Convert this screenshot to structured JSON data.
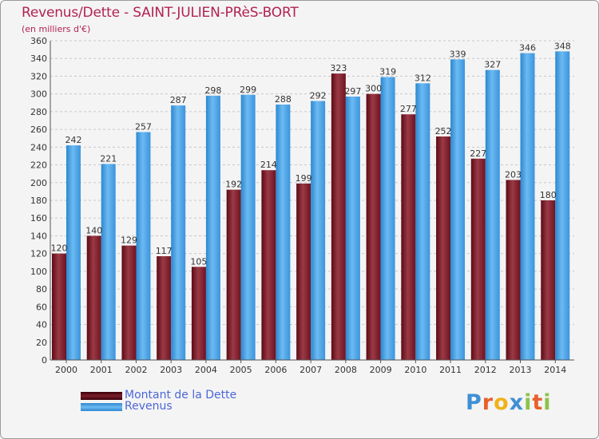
{
  "chart_data": {
    "type": "bar",
    "title": "Revenus/Dette - SAINT-JULIEN-PRèS-BORT",
    "subtitle": "(en milliers d'€)",
    "categories": [
      "2000",
      "2001",
      "2002",
      "2003",
      "2004",
      "2005",
      "2006",
      "2007",
      "2008",
      "2009",
      "2010",
      "2011",
      "2012",
      "2013",
      "2014"
    ],
    "series": [
      {
        "name": "Montant de la Dette",
        "color": "#7a1f2b",
        "values": [
          120,
          140,
          129,
          117,
          105,
          192,
          214,
          199,
          323,
          300,
          277,
          252,
          227,
          203,
          180
        ]
      },
      {
        "name": "Revenus",
        "color": "#4ea3e6",
        "values": [
          242,
          221,
          257,
          287,
          298,
          299,
          288,
          292,
          297,
          319,
          312,
          339,
          327,
          346,
          348
        ]
      }
    ],
    "ylim": [
      0,
      360
    ],
    "ytick_step": 20,
    "grid": true,
    "legend_position": "bottom-left"
  },
  "legend": {
    "debt_label": "Montant de la Dette",
    "revenue_label": "Revenus"
  },
  "logo": {
    "letters": [
      "P",
      "r",
      "o",
      "x",
      "i",
      "t",
      "i"
    ],
    "colors": [
      "#3f8fd6",
      "#e8612c",
      "#f0b21a",
      "#3f8fd6",
      "#8bc34a",
      "#e8612c",
      "#8bc34a"
    ]
  }
}
